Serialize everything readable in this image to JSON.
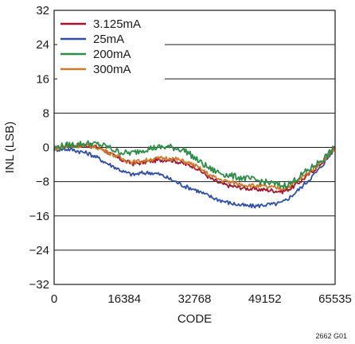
{
  "chart_data": {
    "type": "line",
    "xlabel": "CODE",
    "ylabel": "INL (LSB)",
    "xlim": [
      0,
      65535
    ],
    "ylim": [
      -32,
      32
    ],
    "x_ticks": [
      0,
      16384,
      32768,
      49152,
      65535
    ],
    "y_ticks": [
      32,
      24,
      16,
      8,
      0,
      -8,
      -16,
      -24,
      -32
    ],
    "x_tick_labels": [
      "0",
      "16384",
      "32768",
      "49152",
      "65535"
    ],
    "y_tick_labels": [
      "32",
      "24",
      "16",
      "8",
      "0",
      "−8",
      "−16",
      "−24",
      "−32"
    ],
    "grid": "horizontal",
    "legend_position": "top-left",
    "figure_id": "2662 G01",
    "x": [
      0,
      2048,
      4096,
      6144,
      8192,
      10240,
      12288,
      14336,
      16384,
      18432,
      20480,
      22528,
      24576,
      26624,
      28672,
      30720,
      32768,
      34816,
      36864,
      38912,
      40960,
      43008,
      45056,
      47104,
      49152,
      51200,
      53248,
      55296,
      57344,
      59392,
      61440,
      63488,
      65535
    ],
    "series": [
      {
        "name": "3.125mA",
        "color": "#a3152e",
        "values": [
          -0.3,
          0.2,
          0.4,
          0.5,
          0.4,
          0.0,
          -1.0,
          -2.2,
          -3.2,
          -3.8,
          -3.6,
          -3.2,
          -3.0,
          -2.8,
          -3.3,
          -4.0,
          -4.5,
          -6.0,
          -7.5,
          -8.5,
          -9.0,
          -9.3,
          -9.6,
          -9.8,
          -9.9,
          -10.1,
          -10.3,
          -9.5,
          -8.0,
          -6.3,
          -4.5,
          -2.5,
          0.0
        ]
      },
      {
        "name": "25mA",
        "color": "#2e4fa3",
        "values": [
          -0.5,
          -0.4,
          -0.5,
          -1.0,
          -1.5,
          -2.5,
          -3.7,
          -4.7,
          -5.8,
          -6.4,
          -6.0,
          -5.9,
          -6.3,
          -7.2,
          -8.2,
          -9.2,
          -9.8,
          -10.8,
          -11.7,
          -12.4,
          -13.0,
          -13.4,
          -13.7,
          -13.7,
          -13.4,
          -13.3,
          -12.9,
          -11.4,
          -9.6,
          -7.6,
          -5.5,
          -3.0,
          0.0
        ]
      },
      {
        "name": "200mA",
        "color": "#2e8b4a",
        "values": [
          -0.2,
          0.4,
          0.6,
          0.8,
          0.9,
          0.7,
          0.2,
          -0.8,
          -1.3,
          -1.3,
          -0.6,
          -0.2,
          0.0,
          0.1,
          -0.2,
          -0.8,
          -2.5,
          -4.0,
          -5.3,
          -6.0,
          -6.6,
          -7.0,
          -7.3,
          -7.7,
          -8.1,
          -8.5,
          -9.0,
          -8.3,
          -6.7,
          -5.2,
          -3.7,
          -2.0,
          0.0
        ]
      },
      {
        "name": "300mA",
        "color": "#cf7a2a",
        "values": [
          -0.4,
          0.1,
          0.3,
          0.4,
          0.3,
          -0.1,
          -1.0,
          -2.0,
          -2.9,
          -3.4,
          -3.2,
          -2.8,
          -2.6,
          -2.5,
          -2.8,
          -3.4,
          -4.2,
          -5.5,
          -6.8,
          -7.6,
          -8.1,
          -8.5,
          -8.8,
          -9.0,
          -9.2,
          -9.4,
          -9.6,
          -8.9,
          -7.4,
          -5.8,
          -4.1,
          -2.3,
          0.0
        ]
      }
    ]
  }
}
